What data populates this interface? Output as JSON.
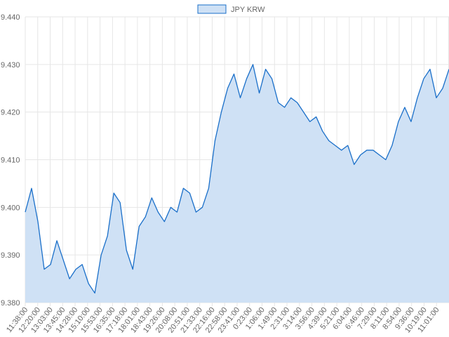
{
  "chart_data": {
    "type": "area",
    "title": "",
    "xlabel": "",
    "ylabel": "",
    "legend": {
      "position": "top-center",
      "entries": [
        "JPY KRW"
      ]
    },
    "series": [
      {
        "name": "JPY KRW",
        "fill": "#cfe1f5",
        "stroke": "#1a6fc9",
        "x": [
          "11:38:00",
          "11:59:00",
          "12:20:00",
          "12:41:00",
          "13:03:00",
          "13:24:00",
          "13:45:00",
          "14:06:00",
          "14:28:00",
          "14:49:00",
          "15:10:00",
          "15:31:00",
          "15:53:00",
          "16:14:00",
          "16:35:00",
          "16:56:00",
          "17:18:00",
          "17:39:00",
          "18:01:00",
          "18:22:00",
          "18:43:00",
          "19:04:00",
          "19:26:00",
          "19:47:00",
          "20:08:00",
          "20:29:00",
          "20:51:00",
          "21:12:00",
          "21:33:00",
          "21:54:00",
          "22:16:00",
          "22:37:00",
          "22:58:00",
          "23:19:00",
          "23:41:00",
          "0:02:00",
          "0:23:00",
          "0:44:00",
          "1:06:00",
          "1:27:00",
          "1:49:00",
          "2:10:00",
          "2:31:00",
          "2:52:00",
          "3:14:00",
          "3:35:00",
          "3:56:00",
          "4:17:00",
          "4:39:00",
          "5:00:00",
          "5:21:00",
          "5:42:00",
          "6:04:00",
          "6:25:00",
          "6:46:00",
          "7:07:00",
          "7:29:00",
          "7:50:00",
          "8:11:00",
          "8:32:00",
          "8:54:00",
          "9:15:00",
          "9:36:00",
          "9:57:00",
          "10:19:00",
          "10:40:00",
          "11:01:00",
          "11:22:00"
        ],
        "values": [
          9.399,
          9.404,
          9.397,
          9.387,
          9.388,
          9.393,
          9.389,
          9.385,
          9.387,
          9.388,
          9.384,
          9.382,
          9.39,
          9.394,
          9.403,
          9.401,
          9.391,
          9.387,
          9.396,
          9.398,
          9.402,
          9.399,
          9.397,
          9.4,
          9.399,
          9.404,
          9.403,
          9.399,
          9.4,
          9.404,
          9.414,
          9.42,
          9.425,
          9.428,
          9.423,
          9.427,
          9.43,
          9.424,
          9.429,
          9.427,
          9.422,
          9.421,
          9.423,
          9.422,
          9.42,
          9.418,
          9.419,
          9.416,
          9.414,
          9.413,
          9.412,
          9.413,
          9.409,
          9.411,
          9.412,
          9.412,
          9.411,
          9.41,
          9.413,
          9.418,
          9.421,
          9.418,
          9.423,
          9.427,
          9.429,
          9.423,
          9.425,
          9.429
        ]
      }
    ],
    "x_tick_labels": [
      "11:38:00",
      "12:20:00",
      "13:03:00",
      "13:45:00",
      "14:28:00",
      "15:10:00",
      "15:53:00",
      "16:35:00",
      "17:18:00",
      "18:01:00",
      "18:43:00",
      "19:26:00",
      "20:08:00",
      "20:51:00",
      "21:33:00",
      "22:16:00",
      "22:58:00",
      "23:41:00",
      "0:23:00",
      "1:06:00",
      "1:49:00",
      "2:31:00",
      "3:14:00",
      "3:56:00",
      "4:39:00",
      "5:21:00",
      "6:04:00",
      "6:46:00",
      "7:29:00",
      "8:11:00",
      "8:54:00",
      "9:36:00",
      "10:19:00",
      "11:01:00"
    ],
    "y_tick_labels": [
      "9.380",
      "9.390",
      "9.400",
      "9.410",
      "9.420",
      "9.430",
      "9.440"
    ],
    "ylim": [
      9.38,
      9.44
    ],
    "grid": true
  }
}
